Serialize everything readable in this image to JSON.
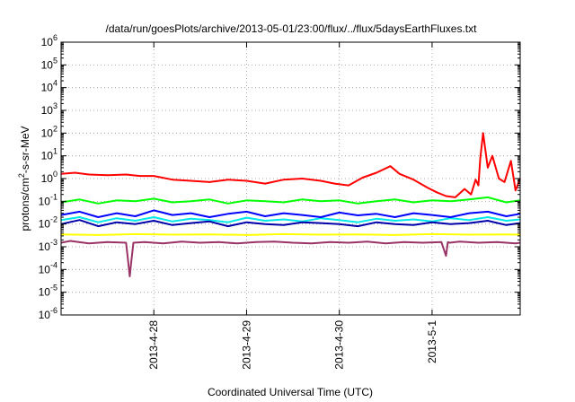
{
  "chart_data": {
    "type": "line",
    "title": "/data/run/goesPlots/archive/2013-05-01/23:00/flux/../flux/5daysEarthFluxes.txt",
    "xlabel": "Coordinated Universal Time (UTC)",
    "ylabel": {
      "base": "protons/cm",
      "sup": "2",
      "rest": "-s-sr-MeV"
    },
    "x_unit": "days",
    "x_tick_labels": [
      "2013-4-28",
      "2013-4-29",
      "2013-4-30",
      "2013-5-1"
    ],
    "x_ticks": [
      1,
      2,
      3,
      4
    ],
    "xlim": [
      0,
      4.95
    ],
    "yscale": "log",
    "ylim": [
      1e-06,
      1000000.0
    ],
    "y_tick_exponents": [
      -6,
      -5,
      -4,
      -3,
      -2,
      -1,
      0,
      1,
      2,
      3,
      4,
      5,
      6
    ],
    "y_tick_base": "10",
    "grid": true,
    "series": [
      {
        "color": "#ff0000",
        "x": [
          0.0,
          0.15,
          0.3,
          0.5,
          0.7,
          0.85,
          1.0,
          1.2,
          1.4,
          1.6,
          1.8,
          2.0,
          2.2,
          2.4,
          2.6,
          2.8,
          2.95,
          3.1,
          3.25,
          3.4,
          3.55,
          3.65,
          3.8,
          3.95,
          4.05,
          4.15,
          4.25,
          4.35,
          4.42,
          4.47,
          4.5,
          4.52,
          4.55,
          4.6,
          4.65,
          4.72,
          4.78,
          4.85,
          4.9,
          4.95
        ],
        "y": [
          1.6,
          1.8,
          1.5,
          1.4,
          1.5,
          1.3,
          1.3,
          0.9,
          0.8,
          0.7,
          0.9,
          0.8,
          0.6,
          0.9,
          1.0,
          0.8,
          0.6,
          0.5,
          1.1,
          1.8,
          3.5,
          1.6,
          0.9,
          0.4,
          0.25,
          0.17,
          0.15,
          0.35,
          0.2,
          0.9,
          0.5,
          8.0,
          100,
          3.0,
          10.0,
          1.0,
          0.7,
          6.0,
          0.3,
          1.0
        ]
      },
      {
        "color": "#00ff00",
        "x": [
          0.0,
          0.2,
          0.4,
          0.6,
          0.8,
          1.0,
          1.2,
          1.4,
          1.6,
          1.8,
          2.0,
          2.2,
          2.4,
          2.6,
          2.8,
          3.0,
          3.2,
          3.4,
          3.6,
          3.8,
          4.0,
          4.2,
          4.4,
          4.6,
          4.8,
          4.95
        ],
        "y": [
          0.09,
          0.12,
          0.08,
          0.11,
          0.1,
          0.13,
          0.09,
          0.1,
          0.12,
          0.08,
          0.11,
          0.1,
          0.09,
          0.12,
          0.1,
          0.11,
          0.08,
          0.1,
          0.12,
          0.09,
          0.11,
          0.1,
          0.12,
          0.15,
          0.09,
          0.11
        ]
      },
      {
        "color": "#00e8e8",
        "x": [
          0.0,
          0.2,
          0.4,
          0.6,
          0.8,
          1.0,
          1.2,
          1.4,
          1.6,
          1.8,
          2.0,
          2.2,
          2.4,
          2.6,
          2.8,
          3.0,
          3.2,
          3.4,
          3.6,
          3.8,
          4.0,
          4.2,
          4.4,
          4.6,
          4.8,
          4.95
        ],
        "y": [
          0.015,
          0.02,
          0.012,
          0.018,
          0.014,
          0.02,
          0.013,
          0.017,
          0.015,
          0.012,
          0.019,
          0.014,
          0.016,
          0.013,
          0.018,
          0.015,
          0.012,
          0.017,
          0.014,
          0.016,
          0.013,
          0.018,
          0.015,
          0.02,
          0.014,
          0.016
        ]
      },
      {
        "color": "#0000ff",
        "x": [
          0.0,
          0.2,
          0.4,
          0.6,
          0.8,
          1.0,
          1.2,
          1.4,
          1.6,
          1.8,
          2.0,
          2.2,
          2.4,
          2.6,
          2.8,
          3.0,
          3.2,
          3.4,
          3.6,
          3.8,
          4.0,
          4.2,
          4.4,
          4.6,
          4.8,
          4.95
        ],
        "y": [
          0.025,
          0.035,
          0.02,
          0.03,
          0.022,
          0.04,
          0.025,
          0.03,
          0.02,
          0.028,
          0.035,
          0.022,
          0.03,
          0.025,
          0.02,
          0.032,
          0.024,
          0.028,
          0.02,
          0.03,
          0.025,
          0.02,
          0.03,
          0.035,
          0.022,
          0.028
        ]
      },
      {
        "color": "#0000aa",
        "x": [
          0.0,
          0.2,
          0.4,
          0.6,
          0.8,
          1.0,
          1.2,
          1.4,
          1.6,
          1.8,
          2.0,
          2.2,
          2.4,
          2.6,
          2.8,
          3.0,
          3.2,
          3.4,
          3.6,
          3.8,
          4.0,
          4.2,
          4.4,
          4.6,
          4.8,
          4.95
        ],
        "y": [
          0.01,
          0.015,
          0.008,
          0.012,
          0.01,
          0.014,
          0.009,
          0.011,
          0.013,
          0.008,
          0.012,
          0.01,
          0.009,
          0.012,
          0.011,
          0.01,
          0.008,
          0.012,
          0.01,
          0.009,
          0.012,
          0.01,
          0.011,
          0.014,
          0.009,
          0.011
        ]
      },
      {
        "color": "#ffff00",
        "x": [
          0.0,
          0.4,
          0.8,
          1.2,
          1.6,
          2.0,
          2.4,
          2.8,
          3.2,
          3.6,
          4.0,
          4.4,
          4.8,
          4.95
        ],
        "y": [
          0.0035,
          0.0033,
          0.0036,
          0.0034,
          0.0035,
          0.0033,
          0.0036,
          0.0034,
          0.0035,
          0.0033,
          0.0036,
          0.0034,
          0.0035,
          0.0034
        ]
      },
      {
        "color": "#993366",
        "x": [
          0.0,
          0.1,
          0.3,
          0.5,
          0.7,
          0.72,
          0.74,
          0.76,
          0.78,
          0.9,
          1.1,
          1.3,
          1.5,
          1.7,
          1.9,
          2.1,
          2.3,
          2.5,
          2.7,
          2.9,
          3.1,
          3.3,
          3.5,
          3.7,
          3.9,
          4.1,
          4.15,
          4.17,
          4.19,
          4.3,
          4.5,
          4.7,
          4.9,
          4.95
        ],
        "y": [
          0.0015,
          0.0018,
          0.0014,
          0.0016,
          0.0015,
          0.0003,
          5e-05,
          0.0003,
          0.0015,
          0.0016,
          0.0014,
          0.0017,
          0.0015,
          0.0016,
          0.0014,
          0.0016,
          0.0017,
          0.0015,
          0.0014,
          0.0016,
          0.0015,
          0.0017,
          0.0014,
          0.0016,
          0.0015,
          0.0016,
          0.0004,
          0.0016,
          0.0015,
          0.0017,
          0.0015,
          0.0016,
          0.0014,
          0.0015
        ]
      }
    ]
  }
}
